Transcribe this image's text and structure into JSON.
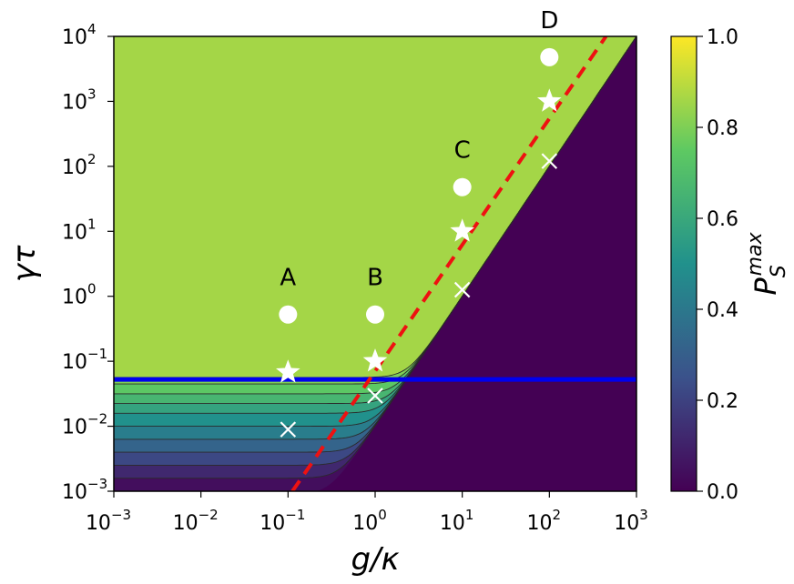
{
  "chart_data": {
    "type": "heatmap",
    "title": "",
    "xlabel": "g/κ",
    "ylabel": "γτ",
    "x_scale": "log",
    "y_scale": "log",
    "xlim_log10": [
      -3,
      3
    ],
    "ylim_log10": [
      -3,
      4
    ],
    "x_ticks": [
      {
        "base": "10",
        "exp": "−3",
        "log": -3
      },
      {
        "base": "10",
        "exp": "−2",
        "log": -2
      },
      {
        "base": "10",
        "exp": "−1",
        "log": -1
      },
      {
        "base": "10",
        "exp": "0",
        "log": 0
      },
      {
        "base": "10",
        "exp": "1",
        "log": 1
      },
      {
        "base": "10",
        "exp": "2",
        "log": 2
      },
      {
        "base": "10",
        "exp": "3",
        "log": 3
      }
    ],
    "y_ticks": [
      {
        "base": "10",
        "exp": "−3",
        "log": -3
      },
      {
        "base": "10",
        "exp": "−2",
        "log": -2
      },
      {
        "base": "10",
        "exp": "−1",
        "log": -1
      },
      {
        "base": "10",
        "exp": "0",
        "log": 0
      },
      {
        "base": "10",
        "exp": "1",
        "log": 1
      },
      {
        "base": "10",
        "exp": "2",
        "log": 2
      },
      {
        "base": "10",
        "exp": "3",
        "log": 3
      },
      {
        "base": "10",
        "exp": "4",
        "log": 4
      }
    ],
    "colorbar": {
      "label_main": "P",
      "label_sub": "S",
      "label_sup": "max",
      "range": [
        0,
        1
      ],
      "ticks": [
        "0.0",
        "0.2",
        "0.4",
        "0.6",
        "0.8",
        "1.0"
      ],
      "colormap": [
        "#440154",
        "#3b528b",
        "#21918c",
        "#5ec962",
        "#fde725"
      ]
    },
    "contour_levels_log10_gt_low": [
      -2.8,
      -2.6,
      -2.4,
      -2.2,
      -2.0,
      -1.8,
      -1.65,
      -1.5,
      -1.35
    ],
    "blue_line": {
      "y_log": -1.28,
      "color": "#0000ee"
    },
    "red_dashed_line": {
      "points_log": [
        [
          -0.95,
          -3.0
        ],
        [
          2.65,
          4.0
        ]
      ],
      "color": "#ee1111"
    },
    "labeled_points": [
      {
        "label": "A",
        "x_log": -1,
        "circle_y_log": -0.28,
        "star_y_log": -1.17,
        "cross_y_log": -2.05
      },
      {
        "label": "B",
        "x_log": 0,
        "circle_y_log": -0.28,
        "star_y_log": -1.0,
        "cross_y_log": -1.53
      },
      {
        "label": "C",
        "x_log": 1,
        "circle_y_log": 1.68,
        "star_y_log": 1.0,
        "cross_y_log": 0.1
      },
      {
        "label": "D",
        "x_log": 2,
        "circle_y_log": 3.68,
        "star_y_log": 3.0,
        "cross_y_log": 2.08
      }
    ]
  }
}
